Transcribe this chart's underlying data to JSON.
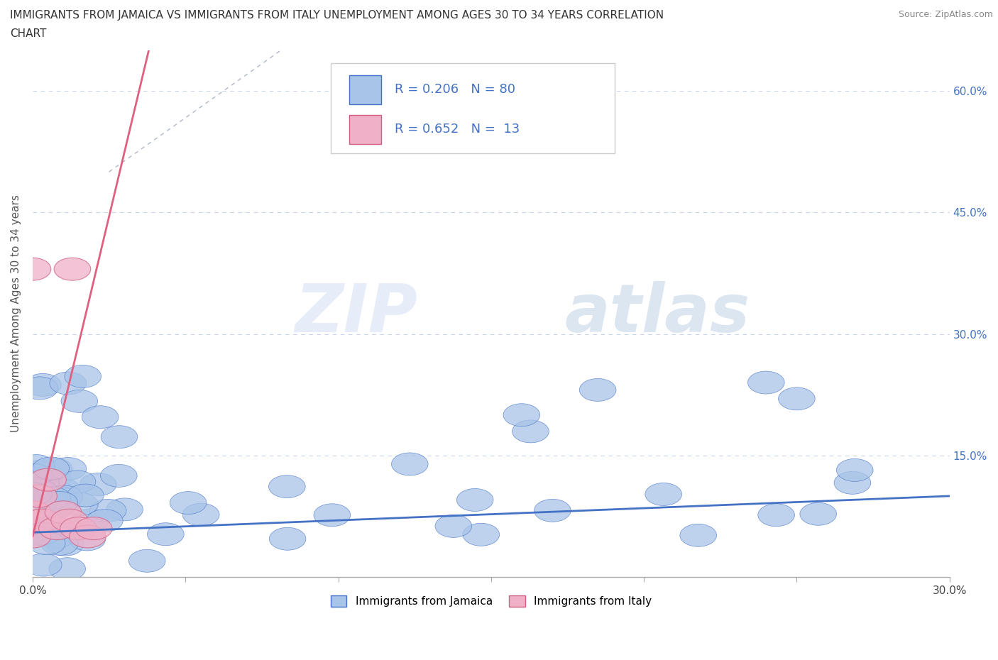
{
  "title_line1": "IMMIGRANTS FROM JAMAICA VS IMMIGRANTS FROM ITALY UNEMPLOYMENT AMONG AGES 30 TO 34 YEARS CORRELATION",
  "title_line2": "CHART",
  "source": "Source: ZipAtlas.com",
  "ylabel": "Unemployment Among Ages 30 to 34 years",
  "xlim": [
    0.0,
    0.3
  ],
  "ylim": [
    0.0,
    0.65
  ],
  "xtick_positions": [
    0.0,
    0.05,
    0.1,
    0.15,
    0.2,
    0.25,
    0.3
  ],
  "xtick_labels": [
    "0.0%",
    "",
    "",
    "",
    "",
    "",
    "30.0%"
  ],
  "ytick_positions": [
    0.0,
    0.15,
    0.3,
    0.45,
    0.6
  ],
  "ytick_labels_right": [
    "",
    "15.0%",
    "30.0%",
    "45.0%",
    "60.0%"
  ],
  "r_jamaica": 0.206,
  "n_jamaica": 80,
  "r_italy": 0.652,
  "n_italy": 13,
  "color_jamaica_fill": "#a8c4e8",
  "color_jamaica_edge": "#4472c4",
  "color_italy_fill": "#f0b0c8",
  "color_italy_edge": "#d06080",
  "color_jamaica_line": "#4472c4",
  "color_italy_line": "#e06080",
  "watermark_zip": "ZIP",
  "watermark_atlas": "atlas",
  "grid_color": "#c8d4e8",
  "legend_r1": "R = 0.206   N = 80",
  "legend_r2": "R = 0.652   N =  13",
  "legend_label1": "Immigrants from Jamaica",
  "legend_label2": "Immigrants from Italy",
  "italy_line_x0": 0.0,
  "italy_line_y0": 0.05,
  "italy_line_x1": 0.038,
  "italy_line_y1": 0.65,
  "jamaica_line_x0": 0.0,
  "jamaica_line_y0": 0.055,
  "jamaica_line_x1": 0.3,
  "jamaica_line_y1": 0.1
}
